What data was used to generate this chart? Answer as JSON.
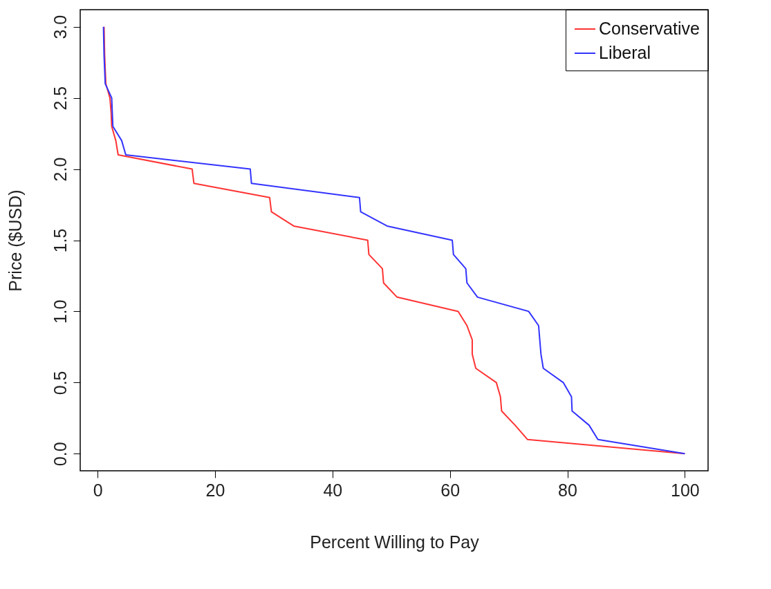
{
  "chart_data": {
    "type": "line",
    "xlabel": "Percent Willing to Pay",
    "ylabel": "Price ($USD)",
    "xlim": [
      -2.96,
      103.96
    ],
    "ylim": [
      -0.12,
      3.12
    ],
    "xticks": [
      0,
      20,
      40,
      60,
      80,
      100
    ],
    "yticks": [
      {
        "value": 0,
        "label": "0.0"
      },
      {
        "value": 0.5,
        "label": "0.5"
      },
      {
        "value": 1,
        "label": "1.0"
      },
      {
        "value": 1.5,
        "label": "1.5"
      },
      {
        "value": 2,
        "label": "2.0"
      },
      {
        "value": 2.5,
        "label": "2.5"
      },
      {
        "value": 3,
        "label": "3.0"
      }
    ],
    "legend": "top right",
    "grid": false,
    "series": [
      {
        "name": "Conservative",
        "color": "#ff3333",
        "x": [
          1.1,
          1.2,
          1.4,
          2.1,
          2.3,
          2.4,
          3.1,
          3.5,
          16.1,
          16.4,
          29.3,
          29.6,
          33.4,
          46.0,
          46.2,
          48.5,
          48.7,
          51.0,
          61.4,
          62.9,
          63.8,
          63.8,
          64.4,
          67.9,
          68.6,
          68.8,
          71.1,
          73.2,
          100
        ],
        "values": [
          3.0,
          2.8,
          2.6,
          2.5,
          2.4,
          2.3,
          2.2,
          2.1,
          2.0,
          1.9,
          1.8,
          1.7,
          1.6,
          1.5,
          1.4,
          1.3,
          1.2,
          1.1,
          1.0,
          0.9,
          0.8,
          0.7,
          0.6,
          0.5,
          0.4,
          0.3,
          0.2,
          0.1,
          0.0
        ]
      },
      {
        "name": "Liberal",
        "color": "#3333ff",
        "x": [
          1.0,
          1.1,
          1.3,
          2.4,
          2.5,
          2.6,
          4.1,
          4.8,
          26.0,
          26.2,
          44.6,
          44.8,
          49.3,
          60.4,
          60.6,
          62.7,
          62.9,
          64.7,
          73.4,
          75.1,
          75.3,
          75.5,
          75.9,
          79.3,
          80.7,
          80.8,
          83.7,
          85.2,
          100
        ],
        "values": [
          3.0,
          2.8,
          2.6,
          2.5,
          2.4,
          2.3,
          2.2,
          2.1,
          2.0,
          1.9,
          1.8,
          1.7,
          1.6,
          1.5,
          1.4,
          1.3,
          1.2,
          1.1,
          1.0,
          0.9,
          0.8,
          0.7,
          0.6,
          0.5,
          0.4,
          0.3,
          0.2,
          0.1,
          0.0
        ]
      }
    ]
  }
}
